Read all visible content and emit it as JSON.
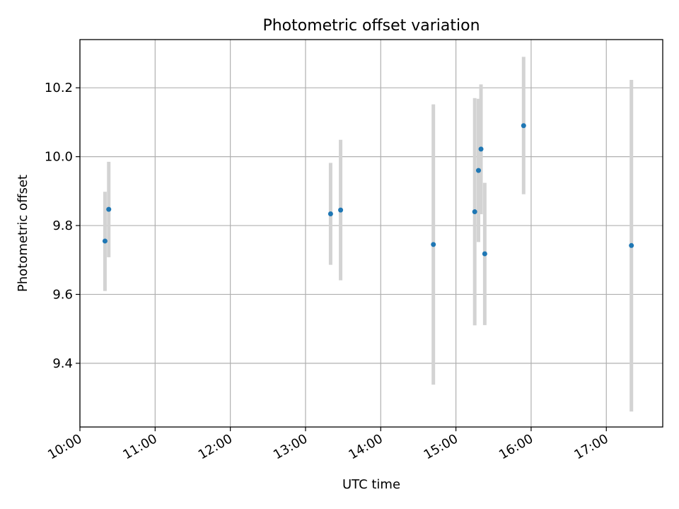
{
  "chart_data": {
    "type": "scatter",
    "title": "Photometric offset variation",
    "xlabel": "UTC time",
    "ylabel": "Photometric offset",
    "xlim": [
      "10:00",
      "17:45"
    ],
    "ylim": [
      9.215,
      10.34
    ],
    "x_ticks": [
      "10:00",
      "11:00",
      "12:00",
      "13:00",
      "14:00",
      "15:00",
      "16:00",
      "17:00"
    ],
    "y_ticks": [
      "9.4",
      "9.6",
      "9.8",
      "10.0",
      "10.2"
    ],
    "grid": true,
    "colors": {
      "points": "#1f77b4",
      "errorbars": "#d3d3d3",
      "grid": "#b0b0b0"
    },
    "points": [
      {
        "x": "10:20",
        "y": 9.755,
        "y_low": 9.61,
        "y_high": 9.898
      },
      {
        "x": "10:23",
        "y": 9.847,
        "y_low": 9.708,
        "y_high": 9.985
      },
      {
        "x": "13:20",
        "y": 9.834,
        "y_low": 9.686,
        "y_high": 9.982
      },
      {
        "x": "13:28",
        "y": 9.845,
        "y_low": 9.641,
        "y_high": 10.049
      },
      {
        "x": "14:42",
        "y": 9.745,
        "y_low": 9.338,
        "y_high": 10.152
      },
      {
        "x": "15:15",
        "y": 9.84,
        "y_low": 9.51,
        "y_high": 10.17
      },
      {
        "x": "15:18",
        "y": 9.96,
        "y_low": 9.752,
        "y_high": 10.168
      },
      {
        "x": "15:20",
        "y": 10.022,
        "y_low": 9.833,
        "y_high": 10.21
      },
      {
        "x": "15:23",
        "y": 9.718,
        "y_low": 9.511,
        "y_high": 9.924
      },
      {
        "x": "15:54",
        "y": 10.09,
        "y_low": 9.891,
        "y_high": 10.29
      },
      {
        "x": "17:20",
        "y": 9.742,
        "y_low": 9.26,
        "y_high": 10.223
      }
    ]
  }
}
